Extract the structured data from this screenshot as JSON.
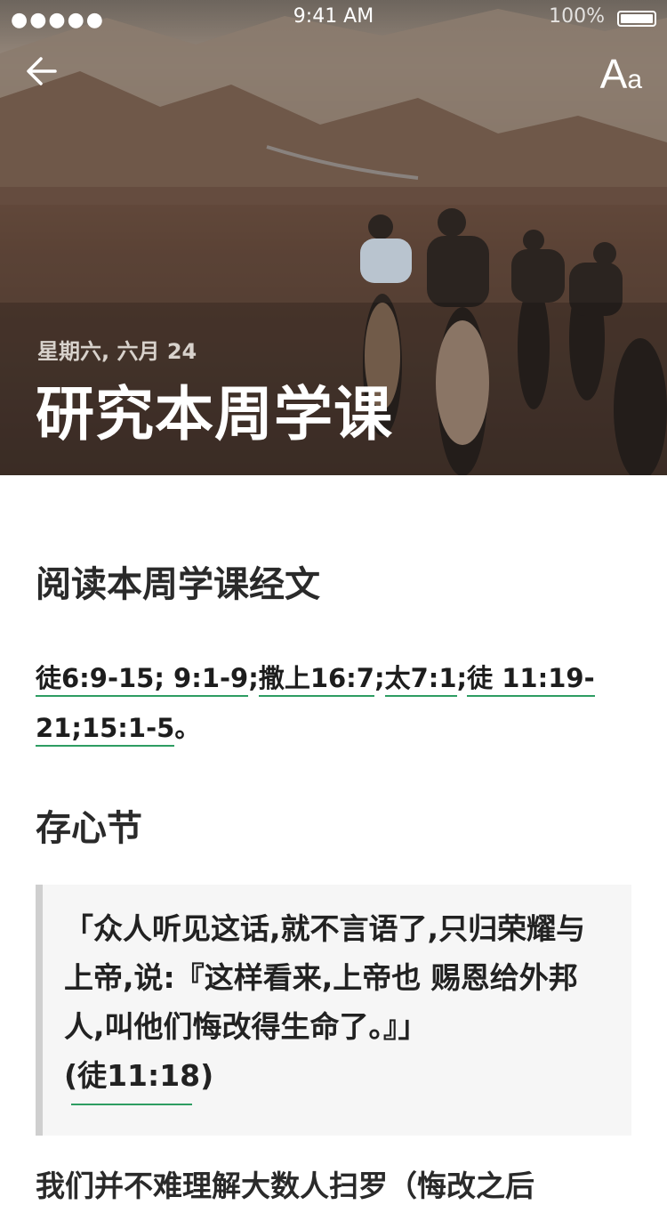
{
  "status_bar": {
    "carrier": "●●●●●",
    "time": "9:41 AM",
    "battery_text": "100%"
  },
  "header": {
    "back_icon": "arrow-left-icon",
    "font_size_label_big": "A",
    "font_size_label_small": "a",
    "date": "星期六, 六月 24",
    "title": "研究本周学课"
  },
  "reading": {
    "heading": "阅读本周学课经文",
    "refs": [
      "徒6:9-15; 9:1-9",
      "撒上16:7",
      "太7:1",
      "徒 11:19-21;15:1-5"
    ],
    "separator": ";",
    "end": "。"
  },
  "memory_verse": {
    "heading": "存心节",
    "text": "「众人听见这话,就不言语了,只归荣耀与上帝,说:『这样看来,上帝也 赐恩给外邦人,叫他们悔改得生命了。』」",
    "ref": "(徒11:18)"
  },
  "body": {
    "text": "我们并不难理解大数人扫罗（悔改之后"
  },
  "colors": {
    "link_underline": "#2e9d62",
    "quote_bg": "#f6f6f6",
    "quote_border": "#cfcfcf"
  }
}
